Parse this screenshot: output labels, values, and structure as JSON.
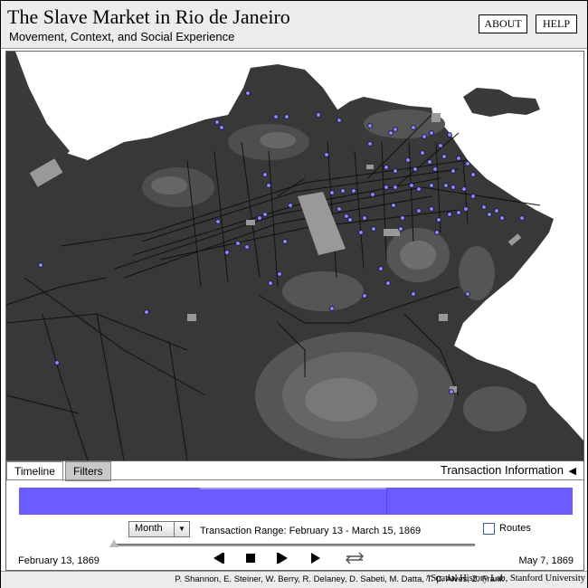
{
  "header": {
    "title": "The Slave Market in Rio de Janeiro",
    "subtitle": "Movement, Context, and Social Experience",
    "about_label": "ABOUT",
    "help_label": "HELP"
  },
  "colors": {
    "accent": "#6a5cff",
    "land_dark": "#3a3a3a",
    "dot": "#8f8fff"
  },
  "panel": {
    "tabs": [
      {
        "label": "Timeline",
        "active": true
      },
      {
        "label": "Filters",
        "active": false
      }
    ],
    "transaction_info_label": "Transaction Information",
    "collapse_icon": "triangle-left-icon",
    "interval_select": {
      "value": "Month"
    },
    "transaction_range_label": "Transaction Range:",
    "transaction_range_value": "February 13 - March 15, 1869",
    "routes_label": "Routes",
    "routes_checked": false,
    "start_date": "February 13, 1869",
    "end_date": "May 7, 1869",
    "slider_position": 0.0,
    "controls": [
      "step-back-icon",
      "stop-icon",
      "step-forward-icon",
      "play-icon",
      "loop-icon"
    ]
  },
  "footer": {
    "credits": "P. Shannon, E. Steiner, W. Berry, R. Delaney, D. Sabeti, M. Datta, T. C. Alves, Z. Frank",
    "lab": "/ Spatial History Lab, Stanford University"
  }
}
